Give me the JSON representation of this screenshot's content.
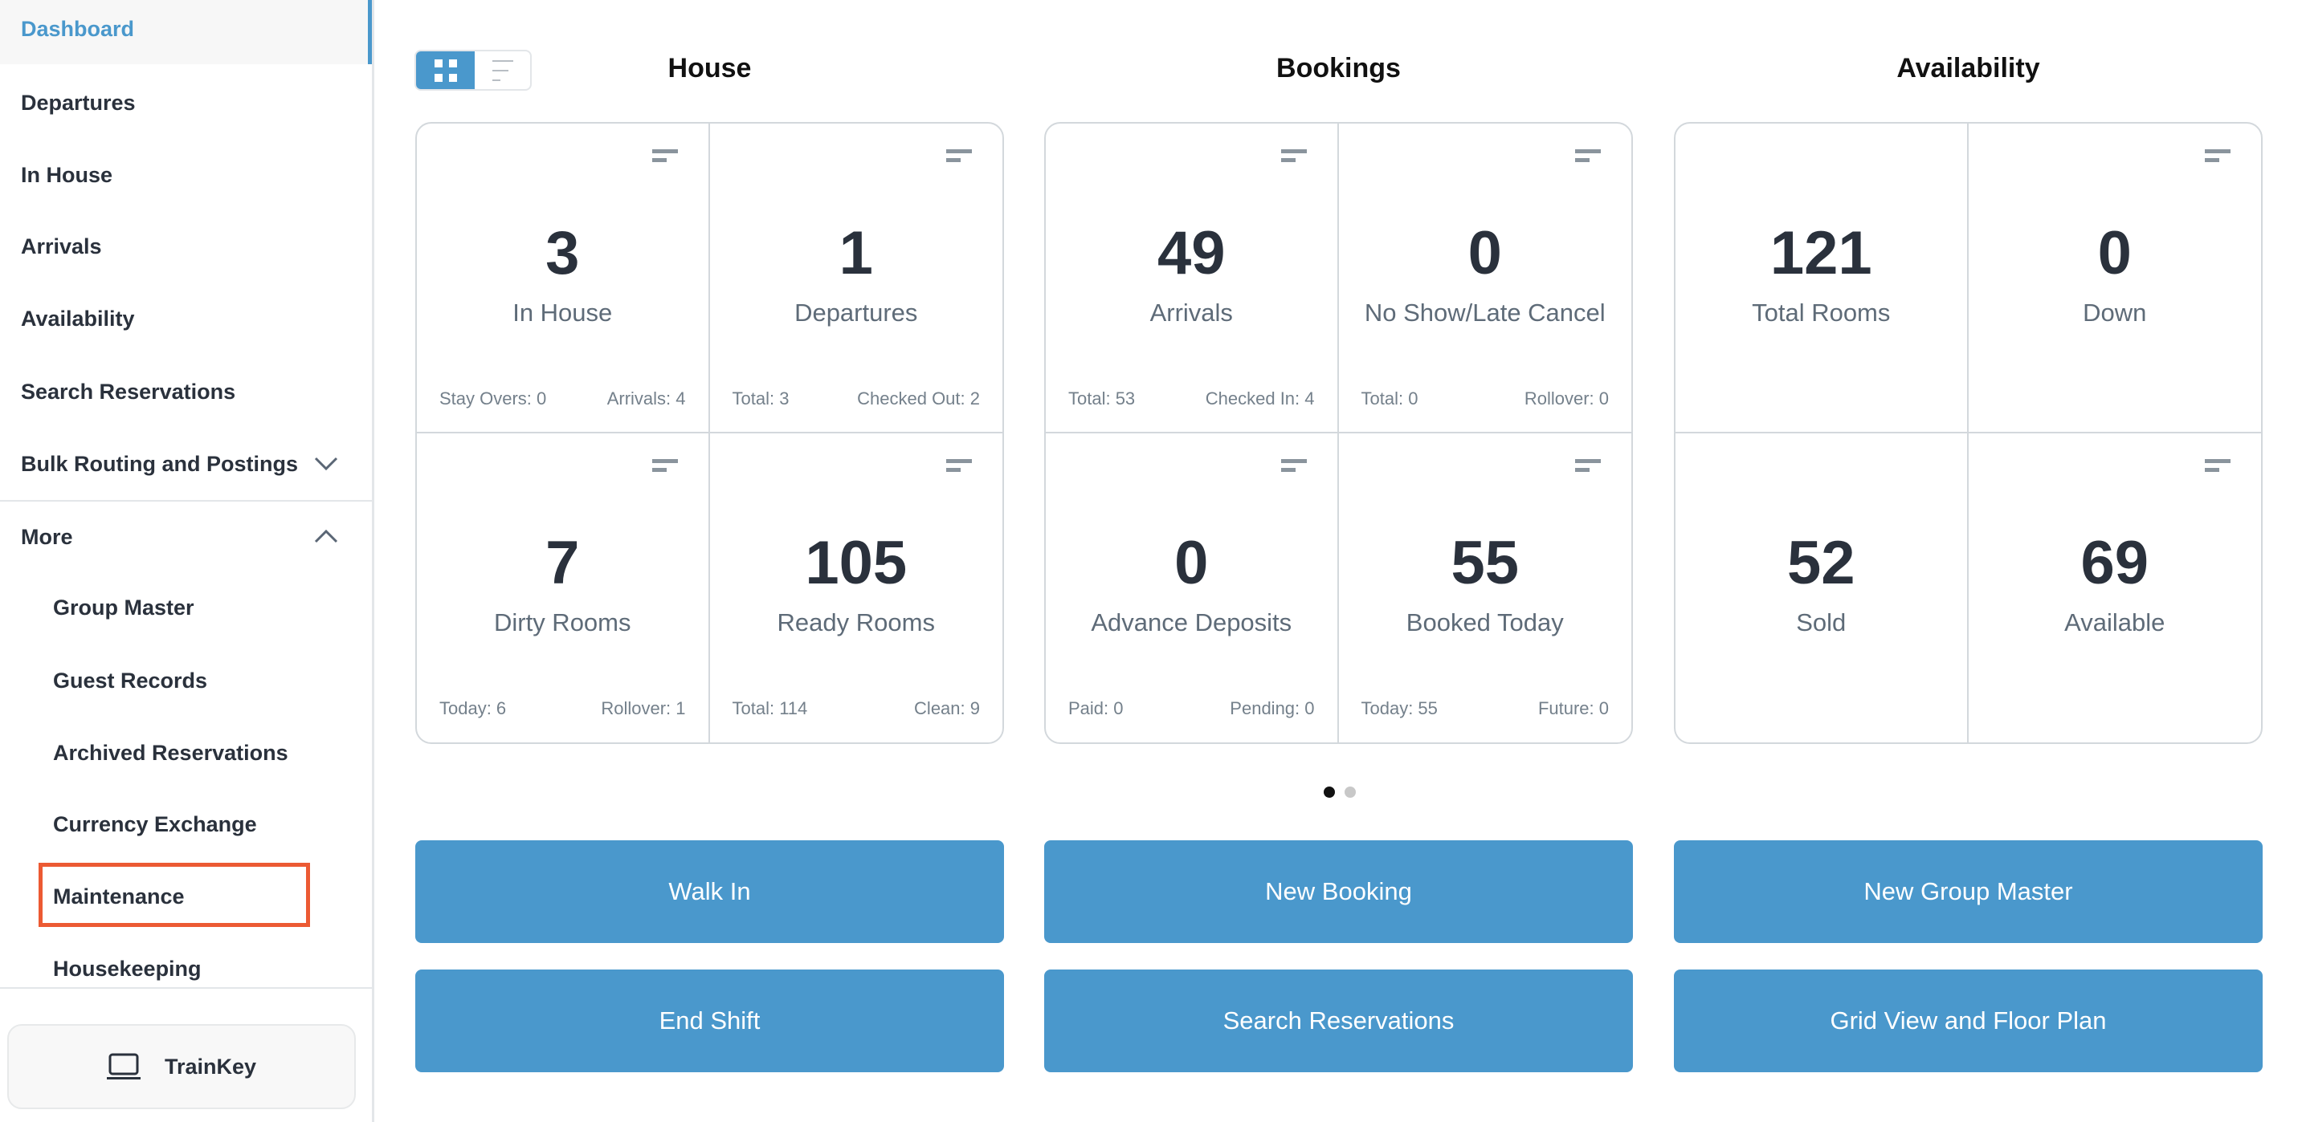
{
  "sidebar": {
    "items": [
      {
        "label": "Dashboard",
        "active": true
      },
      {
        "label": "Departures"
      },
      {
        "label": "In House"
      },
      {
        "label": "Arrivals"
      },
      {
        "label": "Availability"
      },
      {
        "label": "Search Reservations"
      },
      {
        "label": "Bulk Routing and Postings",
        "chevron": "chevron-down-icon"
      },
      {
        "label": "More",
        "chevron": "chevron-up-icon"
      },
      {
        "label": "Group Master",
        "sub": true
      },
      {
        "label": "Guest Records",
        "sub": true
      },
      {
        "label": "Archived Reservations",
        "sub": true
      },
      {
        "label": "Currency Exchange",
        "sub": true
      },
      {
        "label": "Maintenance",
        "sub": true,
        "highlighted": true
      },
      {
        "label": "Housekeeping",
        "sub": true
      }
    ],
    "trainkey": {
      "label": "TrainKey",
      "icon": "laptop-icon"
    }
  },
  "view_toggle": {
    "grid_icon": "grid-icon",
    "list_icon": "list-icon",
    "selected": "grid"
  },
  "sections": [
    {
      "title": "House",
      "cells": [
        {
          "value": "3",
          "label": "In House",
          "left": "Stay Overs: 0",
          "right": "Arrivals: 4"
        },
        {
          "value": "1",
          "label": "Departures",
          "left": "Total: 3",
          "right": "Checked Out: 2"
        },
        {
          "value": "7",
          "label": "Dirty Rooms",
          "left": "Today: 6",
          "right": "Rollover: 1"
        },
        {
          "value": "105",
          "label": "Ready Rooms",
          "left": "Total: 114",
          "right": "Clean: 9"
        }
      ]
    },
    {
      "title": "Bookings",
      "cells": [
        {
          "value": "49",
          "label": "Arrivals",
          "left": "Total: 53",
          "right": "Checked In: 4"
        },
        {
          "value": "0",
          "label": "No Show/Late Cancel",
          "left": "Total: 0",
          "right": "Rollover: 0"
        },
        {
          "value": "0",
          "label": "Advance Deposits",
          "left": "Paid: 0",
          "right": "Pending: 0"
        },
        {
          "value": "55",
          "label": "Booked Today",
          "left": "Today: 55",
          "right": "Future: 0"
        }
      ]
    },
    {
      "title": "Availability",
      "cells": [
        {
          "value": "121",
          "label": "Total Rooms",
          "menu": false
        },
        {
          "value": "0",
          "label": "Down"
        },
        {
          "value": "52",
          "label": "Sold",
          "menu": false
        },
        {
          "value": "69",
          "label": "Available"
        }
      ]
    }
  ],
  "pagination": {
    "pages": 2,
    "current": 1
  },
  "buttons": [
    [
      "Walk In",
      "New Booking",
      "New Group Master"
    ],
    [
      "End Shift",
      "Search Reservations",
      "Grid View and Floor Plan"
    ]
  ],
  "colors": {
    "accent": "#4a98cc",
    "highlight": "#ec5a33",
    "text": "#2a313c"
  }
}
